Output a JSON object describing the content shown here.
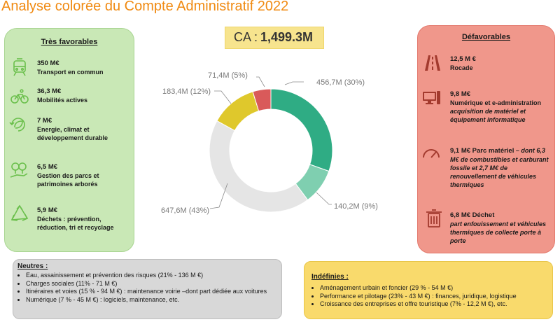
{
  "title": "Analyse colorée du Compte Administratif 2022",
  "ca": {
    "label": "CA :",
    "value": "1,499.3M"
  },
  "donut": {
    "segments": [
      {
        "label": "456,7M (30%)",
        "value": 456.7,
        "color": "#2fac84"
      },
      {
        "label": "140,2M (9%)",
        "value": 140.2,
        "color": "#7fcfb0"
      },
      {
        "label": "647,6M (43%)",
        "value": 647.6,
        "color": "#e5e5e5"
      },
      {
        "label": "183,4M (12%)",
        "value": 183.4,
        "color": "#dfc82c"
      },
      {
        "label": "71,4M (5%)",
        "value": 71.4,
        "color": "#d95a5a"
      }
    ]
  },
  "favorables": {
    "title": "Très favorables",
    "items": [
      {
        "icon": "tram-icon",
        "amount": "350 M€",
        "label": "Transport en commun"
      },
      {
        "icon": "bicycle-icon",
        "amount": "36,3 M€",
        "label": "Mobilités actives"
      },
      {
        "icon": "leaf-recycle-icon",
        "amount": "7 M€",
        "label": "Energie, climat et développement durable"
      },
      {
        "icon": "tree-hand-icon",
        "amount": "6,5 M€",
        "label": "Gestion des parcs et patrimoines arborés"
      },
      {
        "icon": "recycle-icon",
        "amount": "5,9 M€",
        "label": "Déchets : prévention, réduction, tri et recyclage"
      }
    ]
  },
  "defavorables": {
    "title": "Défavorables",
    "items": [
      {
        "icon": "road-icon",
        "amount": "12,5 M €",
        "label": "Rocade",
        "note": ""
      },
      {
        "icon": "computer-icon",
        "amount": "9,8 M€",
        "label": "Numérique et e-administration",
        "note": "acquisition de matériel et équipement informatique"
      },
      {
        "icon": "gauge-icon",
        "amount": "9,1 M€ Parc matériel",
        "label": "",
        "note": "– dont 6,3 M€ de combustibles et carburant fossile et 2,7 M€ de renouvellement de véhicules thermiques"
      },
      {
        "icon": "trash-icon",
        "amount": "6,8 M€ Déchet",
        "label": "",
        "note": "part enfouissement et véhicules thermiques de collecte porte à porte"
      }
    ]
  },
  "neutres": {
    "title": "Neutres :",
    "items": [
      "Eau, assainissement et prévention des risques (21% - 136 M €)",
      "Charges sociales (11% - 71 M €)",
      "Itinéraires et voies (15 % - 94 M €) : maintenance voirie –dont  part dédiée aux voitures",
      "Numérique (7 % - 45 M €) : logiciels, maintenance, etc."
    ]
  },
  "indefinies": {
    "title": "Indéfinies :",
    "items": [
      "Aménagement urbain et foncier (29 % - 54 M €)",
      "Performance et pilotage (23% - 43 M €) : finances, juridique, logistique",
      "Croissance des entreprises et offre touristique (7% - 12,2 M €), etc."
    ]
  }
}
